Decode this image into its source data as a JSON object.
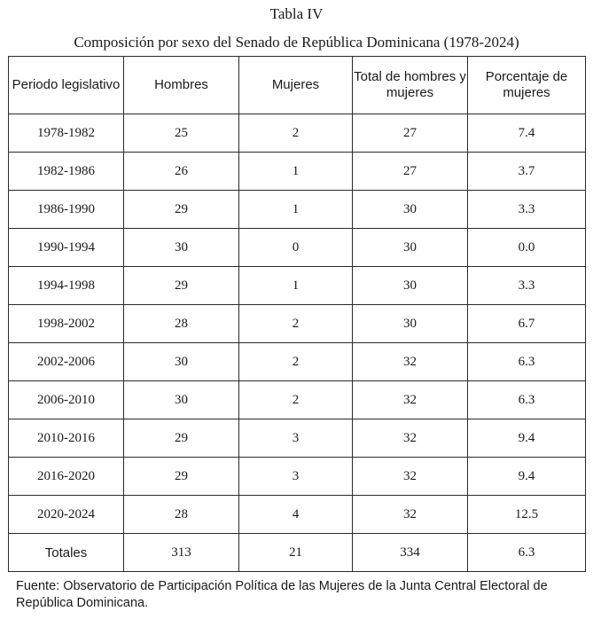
{
  "title": "Tabla IV",
  "subtitle": "Composición por sexo del Senado de República Dominicana (1978-2024)",
  "columns": [
    "Periodo legislativo",
    "Hombres",
    "Mujeres",
    "Total de hombres y mujeres",
    "Porcentaje de mujeres"
  ],
  "rows": [
    [
      "1978-1982",
      "25",
      "2",
      "27",
      "7.4"
    ],
    [
      "1982-1986",
      "26",
      "1",
      "27",
      "3.7"
    ],
    [
      "1986-1990",
      "29",
      "1",
      "30",
      "3.3"
    ],
    [
      "1990-1994",
      "30",
      "0",
      "30",
      "0.0"
    ],
    [
      "1994-1998",
      "29",
      "1",
      "30",
      "3.3"
    ],
    [
      "1998-2002",
      "28",
      "2",
      "30",
      "6.7"
    ],
    [
      "2002-2006",
      "30",
      "2",
      "32",
      "6.3"
    ],
    [
      "2006-2010",
      "30",
      "2",
      "32",
      "6.3"
    ],
    [
      "2010-2016",
      "29",
      "3",
      "32",
      "9.4"
    ],
    [
      "2016-2020",
      "29",
      "3",
      "32",
      "9.4"
    ],
    [
      "2020-2024",
      "28",
      "4",
      "32",
      "12.5"
    ]
  ],
  "totals": [
    "Totales",
    "313",
    "21",
    "334",
    "6.3"
  ],
  "source": "Fuente: Observatorio de Participación Política de las Mujeres de la Junta Central Electoral de República Dominicana."
}
